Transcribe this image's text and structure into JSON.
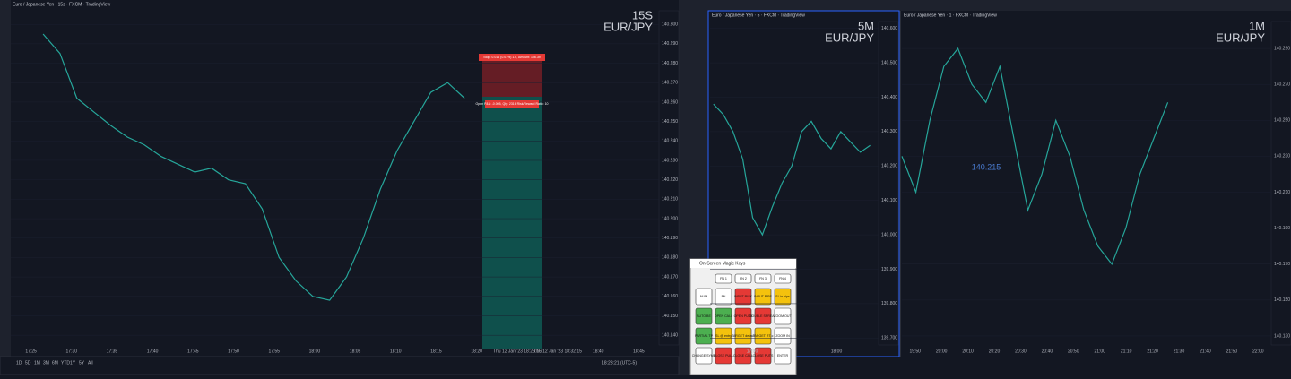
{
  "chart_data": [
    {
      "type": "line",
      "title": "Euro / Japanese Yen · 15s · FXCM · TradingView",
      "watermark": [
        "15S",
        "EUR/JPY"
      ],
      "color": "#26a69a",
      "values": [
        140.295,
        140.285,
        140.262,
        140.255,
        140.248,
        140.242,
        140.238,
        140.232,
        140.228,
        140.224,
        140.226,
        140.22,
        140.218,
        140.205,
        140.18,
        140.168,
        140.16,
        140.158,
        140.17,
        140.19,
        140.215,
        140.235,
        140.25,
        140.265,
        140.27,
        140.262
      ],
      "ylim": [
        140.135,
        140.307
      ],
      "yticks": [
        {
          "value": 140.14,
          "label": "140.140"
        },
        {
          "value": 140.15,
          "label": "140.150"
        },
        {
          "value": 140.16,
          "label": "140.160"
        },
        {
          "value": 140.17,
          "label": "140.170"
        },
        {
          "value": 140.18,
          "label": "140.180"
        },
        {
          "value": 140.19,
          "label": "140.190"
        },
        {
          "value": 140.2,
          "label": "140.200"
        },
        {
          "value": 140.21,
          "label": "140.210"
        },
        {
          "value": 140.22,
          "label": "140.220"
        },
        {
          "value": 140.23,
          "label": "140.230"
        },
        {
          "value": 140.24,
          "label": "140.240"
        },
        {
          "value": 140.25,
          "label": "140.250"
        },
        {
          "value": 140.26,
          "label": "140.260"
        },
        {
          "value": 140.27,
          "label": "140.270"
        },
        {
          "value": 140.28,
          "label": "140.280"
        },
        {
          "value": 140.29,
          "label": "140.290"
        },
        {
          "value": 140.3,
          "label": "140.300"
        }
      ],
      "xlabels": [
        "17:25",
        "17:30",
        "17:35",
        "17:40",
        "17:45",
        "17:50",
        "17:55",
        "18:00",
        "18:05",
        "18:10",
        "18:15",
        "18:20",
        "Thu 12 Jan '23  18:26:15",
        "Thu 12 Jan '23  18:32:15",
        "18:40",
        "18:45"
      ],
      "annotations": [
        "Stop: 0.016 (0.01%) 1.6, Amount: 106.39",
        "Open P&L: -0.005, Qty: 2316 Risk/Reward Ratio: 10"
      ]
    },
    {
      "type": "line",
      "title": "Euro / Japanese Yen · 5 · FXCM · TradingView",
      "watermark": [
        "5M",
        "EUR/JPY"
      ],
      "color": "#26a69a",
      "values": [
        140.38,
        140.35,
        140.3,
        140.22,
        140.05,
        140.0,
        140.08,
        140.15,
        140.2,
        140.3,
        140.33,
        140.28,
        140.25,
        140.3,
        140.27,
        140.24,
        140.26
      ],
      "ylim": [
        139.68,
        140.62
      ],
      "yticks": [
        {
          "value": 139.7,
          "label": "139.700"
        },
        {
          "value": 139.8,
          "label": "139.800"
        },
        {
          "value": 139.9,
          "label": "139.900"
        },
        {
          "value": 140.0,
          "label": "140.000"
        },
        {
          "value": 140.1,
          "label": "140.100"
        },
        {
          "value": 140.2,
          "label": "140.200"
        },
        {
          "value": 140.3,
          "label": "140.300"
        },
        {
          "value": 140.4,
          "label": "140.400"
        },
        {
          "value": 140.5,
          "label": "140.500"
        },
        {
          "value": 140.6,
          "label": "140.600"
        }
      ],
      "xlabels": [
        "17:00",
        "18:00"
      ]
    },
    {
      "type": "line",
      "title": "Euro / Japanese Yen · 1 · FXCM · TradingView",
      "watermark": [
        "1M",
        "EUR/JPY"
      ],
      "color": "#26a69a",
      "values": [
        140.23,
        140.21,
        140.25,
        140.28,
        140.29,
        140.27,
        140.26,
        140.28,
        140.24,
        140.2,
        140.22,
        140.25,
        140.23,
        140.2,
        140.18,
        140.17,
        140.19,
        140.22,
        140.24,
        140.26
      ],
      "ylim": [
        140.125,
        140.305
      ],
      "yticks": [
        {
          "value": 140.13,
          "label": "140.130"
        },
        {
          "value": 140.15,
          "label": "140.150"
        },
        {
          "value": 140.17,
          "label": "140.170"
        },
        {
          "value": 140.19,
          "label": "140.190"
        },
        {
          "value": 140.21,
          "label": "140.210"
        },
        {
          "value": 140.23,
          "label": "140.230"
        },
        {
          "value": 140.25,
          "label": "140.250"
        },
        {
          "value": 140.27,
          "label": "140.270"
        },
        {
          "value": 140.29,
          "label": "140.290"
        }
      ],
      "xlabels": [
        "19:50",
        "20:00",
        "20:10",
        "20:20",
        "20:30",
        "20:40",
        "20:50",
        "21:00",
        "21:10",
        "21:20",
        "21:30",
        "21:40",
        "21:50",
        "22:00"
      ],
      "annotations": [
        "140.215"
      ]
    }
  ],
  "keys": {
    "title": "On-Screen Magic Keys",
    "buttons": [
      {
        "label": "FN 1",
        "color": "#ffffff"
      },
      {
        "label": "FN 2",
        "color": "#ffffff"
      },
      {
        "label": "FN 3",
        "color": "#ffffff"
      },
      {
        "label": "FN 4",
        "color": "#ffffff"
      },
      {
        "label": "NUM",
        "color": "#ffffff"
      },
      {
        "label": "FN",
        "color": "#ffffff"
      },
      {
        "label": "INPUT RISK",
        "color": "#e53935"
      },
      {
        "label": "INPUT PIPS",
        "color": "#f4c20d"
      },
      {
        "label": "SL in pips",
        "color": "#f4c20d"
      },
      {
        "label": "AUTO BE",
        "color": "#4caf50"
      },
      {
        "label": "OPEN CALL",
        "color": "#4caf50"
      },
      {
        "label": "OPEN PUTS",
        "color": "#e53935"
      },
      {
        "label": "DOUBLE SPREAD",
        "color": "#e53935"
      },
      {
        "label": "ZOOM OUT",
        "color": "#ffffff"
      },
      {
        "label": "PARTIAL TP",
        "color": "#4caf50"
      },
      {
        "label": "SL @ entry",
        "color": "#f4c20d"
      },
      {
        "label": "TARGET default",
        "color": "#f4c20d"
      },
      {
        "label": "TARGET RT-c",
        "color": "#f4c20d"
      },
      {
        "label": "ZOOM IN",
        "color": "#ffffff"
      },
      {
        "label": "CHANGE SYMB",
        "color": "#ffffff"
      },
      {
        "label": "CLOSE PULL",
        "color": "#e53935"
      },
      {
        "label": "CLOSE CALL",
        "color": "#e53935"
      },
      {
        "label": "CLOSE PUTS",
        "color": "#e53935"
      },
      {
        "label": "ENTER",
        "color": "#ffffff"
      }
    ]
  },
  "footer": {
    "clock": "18:23:21 (UTC-5)",
    "ranges": [
      "1D",
      "5D",
      "1M",
      "3M",
      "6M",
      "YTD",
      "1Y",
      "5Y",
      "All"
    ]
  }
}
